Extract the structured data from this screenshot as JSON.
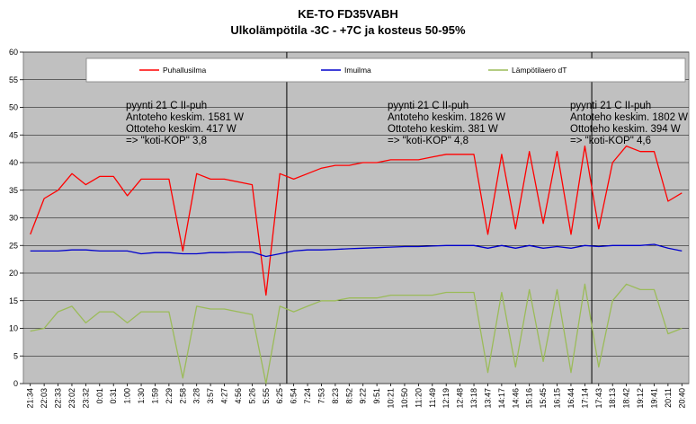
{
  "chart_data": {
    "type": "line",
    "title": "KE-TO FD35VABH",
    "subtitle": "Ulkolämpötila -3C - +7C ja kosteus 50-95%",
    "xlabel": "",
    "ylabel": "",
    "ylim": [
      0,
      60
    ],
    "yticks": [
      0,
      5,
      10,
      15,
      20,
      25,
      30,
      35,
      40,
      45,
      50,
      55,
      60
    ],
    "grid": "horizontal",
    "plot_background": "#c0c0c0",
    "legend_position": "top",
    "categories": [
      "21:34",
      "22:03",
      "22:33",
      "23:02",
      "23:32",
      "0:01",
      "0:31",
      "1:00",
      "1:30",
      "1:59",
      "2:29",
      "2:58",
      "3:28",
      "3:57",
      "4:27",
      "4:56",
      "5:26",
      "5:55",
      "6:25",
      "6:54",
      "7:24",
      "7:53",
      "8:23",
      "8:52",
      "9:22",
      "9:51",
      "10:21",
      "10:50",
      "11:20",
      "11:49",
      "12:19",
      "12:48",
      "13:18",
      "13:47",
      "14:17",
      "14:46",
      "15:16",
      "15:45",
      "16:15",
      "16:44",
      "17:14",
      "17:43",
      "18:13",
      "18:42",
      "19:12",
      "19:41",
      "20:11",
      "20:40"
    ],
    "separators_after_index": [
      18,
      40
    ],
    "series": [
      {
        "name": "Puhallusilma",
        "color": "#ff0000",
        "values": [
          27,
          33.5,
          35,
          38,
          36,
          37.5,
          37.5,
          34,
          37,
          37,
          37,
          24,
          38,
          37,
          37,
          36.5,
          36,
          16,
          38,
          37,
          38,
          39,
          39.5,
          39.5,
          40,
          40,
          40.5,
          40.5,
          40.5,
          41,
          41.5,
          41.5,
          41.5,
          27,
          41.5,
          28,
          42,
          29,
          42,
          27,
          43,
          28,
          40,
          43,
          42,
          42,
          33,
          34.5
        ]
      },
      {
        "name": "Imuilma",
        "color": "#0000cc",
        "values": [
          24,
          24,
          24,
          24.2,
          24.2,
          24,
          24,
          24,
          23.5,
          23.7,
          23.7,
          23.5,
          23.5,
          23.7,
          23.7,
          23.8,
          23.8,
          23,
          23.5,
          24,
          24.2,
          24.2,
          24.3,
          24.4,
          24.5,
          24.6,
          24.7,
          24.8,
          24.8,
          24.9,
          25,
          25,
          25,
          24.5,
          25,
          24.5,
          25,
          24.5,
          24.8,
          24.5,
          25,
          24.8,
          25,
          25,
          25,
          25.2,
          24.5,
          24
        ]
      },
      {
        "name": "Lämpötilaero dT",
        "color": "#9bbb59",
        "values": [
          9.5,
          10,
          13,
          14,
          11,
          13,
          13,
          11,
          13,
          13,
          13,
          1,
          14,
          13.5,
          13.5,
          13,
          12.5,
          0,
          14,
          13,
          14,
          15,
          15,
          15.5,
          15.5,
          15.5,
          16,
          16,
          16,
          16,
          16.5,
          16.5,
          16.5,
          2,
          16.5,
          3,
          17,
          4,
          17,
          2,
          18,
          3,
          15,
          18,
          17,
          17,
          9,
          10
        ]
      }
    ],
    "annotations": [
      {
        "lines": [
          "pyynti 21 C II-puh",
          "Antoteho keskim. 1581 W",
          "Ottoteho keskim. 417 W",
          "=> \"koti-KOP\" 3,8"
        ]
      },
      {
        "lines": [
          "pyynti 21 C II-puh",
          "Antoteho keskim. 1826 W",
          "Ottoteho keskim. 381 W",
          "=> \"koti-KOP\" 4,8"
        ]
      },
      {
        "lines": [
          "pyynti 21 C II-puh",
          "Antoteho keskim. 1802 W",
          "Ottoteho keskim. 394 W",
          "=> \"koti-KOP\" 4,6"
        ]
      }
    ]
  }
}
